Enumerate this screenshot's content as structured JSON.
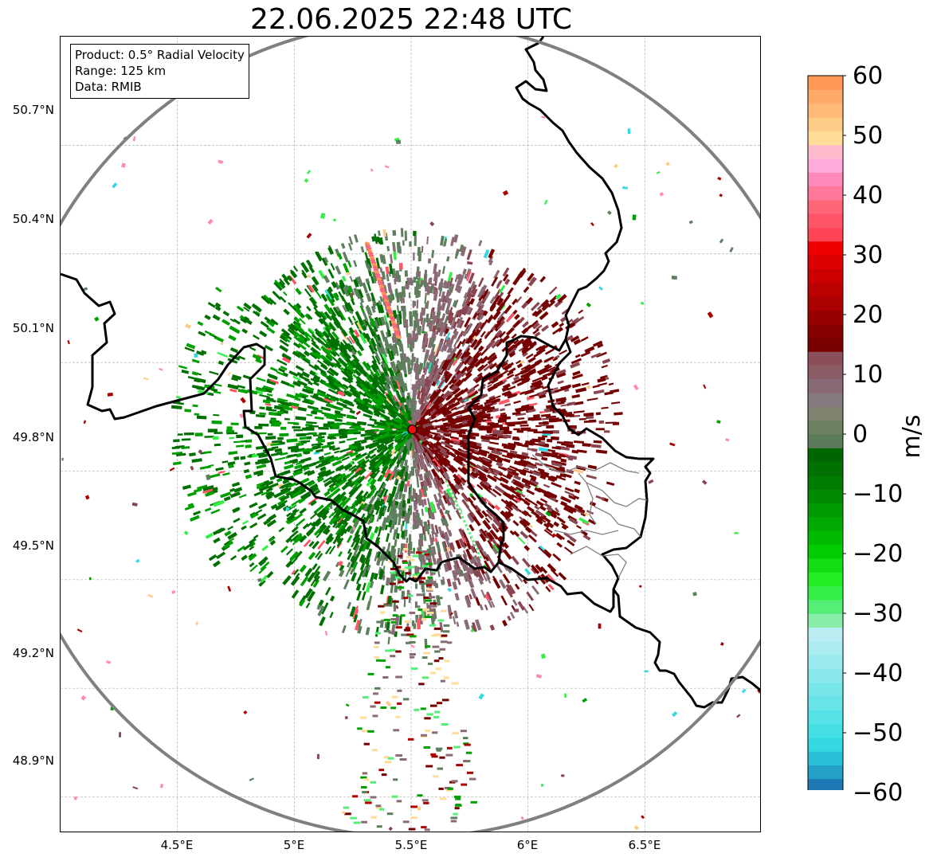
{
  "title": "22.06.2025 22:48 UTC",
  "info_box": {
    "product": "Product: 0.5° Radial Velocity",
    "range": "Range: 125 km",
    "data": "Data: RMIB"
  },
  "axes": {
    "lon_ticks": [
      "4.5°E",
      "5°E",
      "5.5°E",
      "6°E",
      "6.5°E"
    ],
    "lat_ticks": [
      "50.7°N",
      "50.4°N",
      "50.1°N",
      "49.8°N",
      "49.5°N",
      "49.2°N",
      "48.9°N"
    ],
    "lon_values": [
      4.5,
      5.0,
      5.5,
      6.0,
      6.5
    ],
    "lat_values": [
      50.7,
      50.4,
      50.1,
      49.8,
      49.5,
      49.2,
      48.9
    ],
    "lon_range": [
      4.0,
      7.0
    ],
    "lat_range": [
      48.8,
      51.0
    ],
    "grid": true
  },
  "radar_site": {
    "lon": 5.505,
    "lat": 49.915,
    "color": "#ee1111"
  },
  "range_ring_km": 125,
  "colorbar": {
    "label": "m/s",
    "ticks": [
      "60",
      "50",
      "40",
      "30",
      "20",
      "10",
      "0",
      "−10",
      "−20",
      "−30",
      "−40",
      "−50",
      "−60"
    ],
    "tick_values": [
      60,
      50,
      40,
      30,
      20,
      10,
      0,
      -10,
      -20,
      -30,
      -40,
      -50,
      -60
    ],
    "min": -60,
    "max": 60,
    "colors": [
      "#1f77b4",
      "#22a0c8",
      "#2ac0d8",
      "#33d8e0",
      "#44dfe3",
      "#55e2e6",
      "#66e4e8",
      "#77e6ea",
      "#88e8ec",
      "#99eaee",
      "#aaecf0",
      "#bbeef2",
      "#88eeaa",
      "#55ee77",
      "#33ee44",
      "#22ee22",
      "#11dd11",
      "#00cc00",
      "#00bb00",
      "#00aa00",
      "#009900",
      "#008a00",
      "#007d00",
      "#007000",
      "#006600",
      "#5a7a5a",
      "#6a8060",
      "#7f8470",
      "#857a80",
      "#886a76",
      "#8a5c66",
      "#8b4f5a",
      "#7a0000",
      "#880000",
      "#990000",
      "#aa0000",
      "#bb0000",
      "#cc0000",
      "#dd0000",
      "#ee0000",
      "#ff4455",
      "#ff5566",
      "#ff6677",
      "#ff7799",
      "#ff88bb",
      "#ffaadd",
      "#ffbbcc",
      "#ffdd99",
      "#ffcc88",
      "#ffbb77",
      "#ffaa66",
      "#ff9955"
    ]
  },
  "palette": {
    "inbound_dark": "#007000",
    "inbound_light": "#00a000",
    "near_zero_green": "#5e7f5e",
    "near_zero_mauve": "#8a6b75",
    "outbound_dark": "#750000",
    "outbound_mid": "#8a4650",
    "border_color": "#000000",
    "range_ring_color": "#808080"
  }
}
